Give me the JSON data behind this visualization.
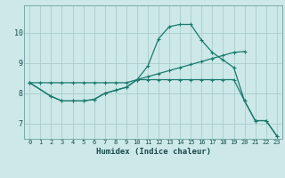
{
  "xlabel": "Humidex (Indice chaleur)",
  "background_color": "#cce8e8",
  "grid_color": "#aacccc",
  "line_color": "#1a7a6e",
  "xlim": [
    -0.5,
    23.5
  ],
  "ylim": [
    6.5,
    10.9
  ],
  "xticks": [
    0,
    1,
    2,
    3,
    4,
    5,
    6,
    7,
    8,
    9,
    10,
    11,
    12,
    13,
    14,
    15,
    16,
    17,
    18,
    19,
    20,
    21,
    22,
    23
  ],
  "yticks": [
    7,
    8,
    9,
    10
  ],
  "line1_x": [
    0,
    1,
    2,
    3,
    4,
    5,
    6,
    7,
    8,
    9,
    10,
    11,
    12,
    13,
    14,
    15,
    16,
    17,
    18,
    19,
    20
  ],
  "line1_y": [
    8.35,
    8.35,
    8.35,
    8.35,
    8.35,
    8.35,
    8.35,
    8.35,
    8.35,
    8.35,
    8.45,
    8.55,
    8.65,
    8.75,
    8.85,
    8.95,
    9.05,
    9.15,
    9.25,
    9.35,
    9.38
  ],
  "line2_x": [
    0,
    2,
    3,
    4,
    5,
    6,
    7,
    8,
    9,
    10,
    11,
    12,
    13,
    14,
    15,
    16,
    17,
    18,
    19,
    20,
    21,
    22,
    23
  ],
  "line2_y": [
    8.35,
    7.9,
    7.75,
    7.75,
    7.75,
    7.8,
    8.0,
    8.1,
    8.2,
    8.45,
    8.9,
    9.8,
    10.2,
    10.27,
    10.27,
    9.75,
    9.35,
    9.1,
    8.85,
    7.75,
    7.1,
    7.1,
    6.6
  ],
  "line3_x": [
    0,
    2,
    3,
    4,
    5,
    6,
    7,
    8,
    9,
    10,
    11,
    12,
    13,
    14,
    15,
    16,
    17,
    18,
    19,
    20,
    21,
    22,
    23
  ],
  "line3_y": [
    8.35,
    7.9,
    7.75,
    7.75,
    7.75,
    7.8,
    8.0,
    8.1,
    8.2,
    8.45,
    8.45,
    8.45,
    8.45,
    8.45,
    8.45,
    8.45,
    8.45,
    8.45,
    8.45,
    7.75,
    7.1,
    7.1,
    6.6
  ]
}
